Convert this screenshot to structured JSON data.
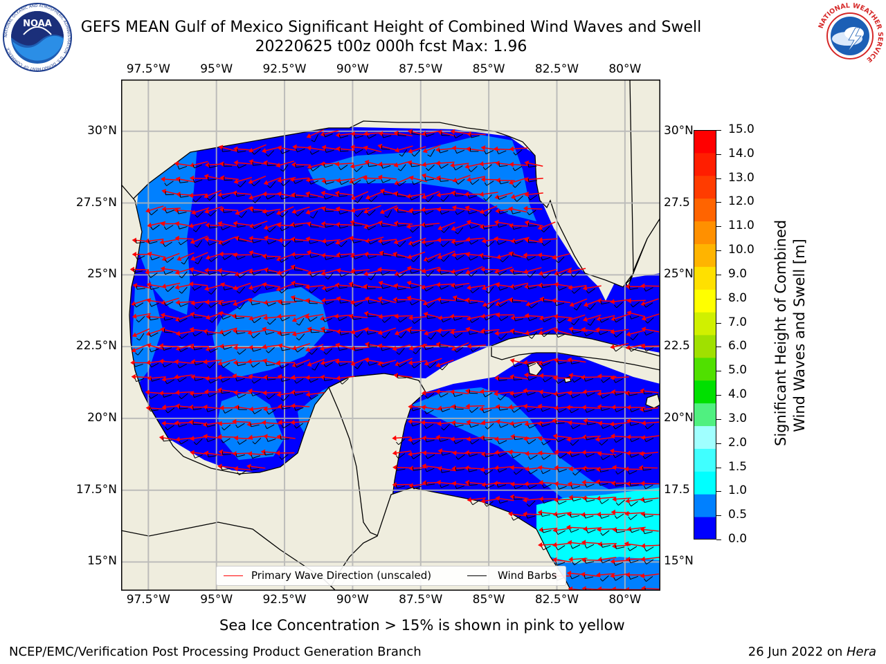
{
  "title": {
    "line1": "GEFS MEAN Gulf of Mexico Significant Height of Combined Wind Waves and Swell",
    "line2": "20220625 t00z 000h fcst   Max: 1.96"
  },
  "logos": {
    "noaa": {
      "text": "NOAA",
      "ring_text": "NATIONAL OCEANIC AND ATMOSPHERIC ADMINISTRATION · U.S. DEPARTMENT OF COMMERCE"
    },
    "nws": {
      "ring_text": "NATIONAL WEATHER SERVICE"
    }
  },
  "map": {
    "lon_range": [
      -98.5,
      -78.7
    ],
    "lat_range": [
      14.0,
      31.8
    ],
    "lon_ticks": [
      -97.5,
      -95,
      -92.5,
      -90,
      -87.5,
      -85,
      -82.5,
      -80
    ],
    "lon_tick_labels": [
      "97.5°W",
      "95°W",
      "92.5°W",
      "90°W",
      "87.5°W",
      "85°W",
      "82.5°W",
      "80°W"
    ],
    "lat_ticks": [
      30,
      27.5,
      25,
      22.5,
      20,
      17.5,
      15
    ],
    "lat_tick_labels_left": [
      "30°N",
      "27.5°N",
      "25°N",
      "22.5°N",
      "20°N",
      "17.5°N",
      "15°N"
    ],
    "lat_tick_labels_right": [
      "30°N",
      "27.5",
      "25°N",
      "22.5",
      "20°N",
      "17.5",
      "15°N"
    ],
    "grid": true,
    "land_color": "#efedde",
    "gridline_color": "#b4b4b4"
  },
  "legend": {
    "placement": "bottom-center",
    "items": [
      {
        "label": "Primary Wave Direction (unscaled)",
        "color": "#ff0000"
      },
      {
        "label": "Wind Barbs",
        "color": "#000000"
      }
    ]
  },
  "colorbar": {
    "label_line1": "Significant Height of Combined",
    "label_line2": "Wind Waves and Swell [m]",
    "tick_labels": [
      "15.0",
      "14.0",
      "13.0",
      "12.0",
      "11.0",
      "10.0",
      "9.0",
      "8.0",
      "7.0",
      "6.0",
      "5.0",
      "4.0",
      "3.0",
      "2.0",
      "1.5",
      "1.0",
      "0.5",
      "0.0"
    ],
    "colors": [
      "#0000ff",
      "#0080ff",
      "#00ffff",
      "#40ffff",
      "#a0ffff",
      "#50f080",
      "#00e000",
      "#50e000",
      "#a0e000",
      "#d0f000",
      "#ffff00",
      "#ffe000",
      "#ffb400",
      "#ff9000",
      "#ff6400",
      "#ff3c00",
      "#ff1e00",
      "#ff0000"
    ]
  },
  "footer": {
    "note": "Sea Ice Concentration > 15% is shown in pink to yellow",
    "credit": "NCEP/EMC/Verification Post Processing Product Generation Branch",
    "date": "26 Jun 2022 on ",
    "machine": "Hera"
  }
}
